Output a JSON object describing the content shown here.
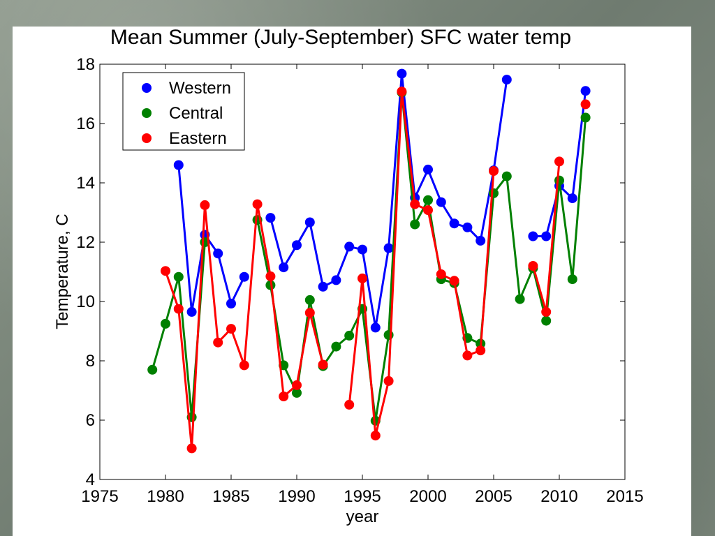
{
  "colors": {
    "Western": "#0000ff",
    "Central": "#008000",
    "Eastern": "#ff0000"
  },
  "chart_data": {
    "type": "line",
    "title": "Mean Summer (July-September) SFC water temp",
    "xlabel": "year",
    "ylabel": "Temperature, C",
    "xlim": [
      1975,
      2015
    ],
    "ylim": [
      4,
      18
    ],
    "xticks": [
      1975,
      1980,
      1985,
      1990,
      1995,
      2000,
      2005,
      2010,
      2015
    ],
    "yticks": [
      4,
      6,
      8,
      10,
      12,
      14,
      16,
      18
    ],
    "grid": false,
    "legend_position": "top-left",
    "series": [
      {
        "name": "Western",
        "points": [
          [
            1981,
            14.6
          ],
          [
            1982,
            9.65
          ],
          [
            1983,
            12.25
          ],
          [
            1984,
            11.62
          ],
          [
            1985,
            9.93
          ],
          [
            1986,
            10.83
          ],
          [
            null,
            null
          ],
          [
            1988,
            12.82
          ],
          [
            1989,
            11.15
          ],
          [
            1990,
            11.9
          ],
          [
            1991,
            12.67
          ],
          [
            1992,
            10.5
          ],
          [
            1993,
            10.72
          ],
          [
            1994,
            11.85
          ],
          [
            1995,
            11.75
          ],
          [
            1996,
            9.12
          ],
          [
            1997,
            11.8
          ],
          [
            1998,
            17.68
          ],
          [
            1999,
            13.5
          ],
          [
            2000,
            14.45
          ],
          [
            2001,
            13.35
          ],
          [
            2002,
            12.63
          ],
          [
            2003,
            12.5
          ],
          [
            2004,
            12.05
          ],
          [
            2005,
            14.42
          ],
          [
            2006,
            17.48
          ],
          [
            null,
            null
          ],
          [
            2008,
            12.2
          ],
          [
            2009,
            12.2
          ],
          [
            2010,
            13.9
          ],
          [
            2011,
            13.48
          ],
          [
            2012,
            17.1
          ]
        ]
      },
      {
        "name": "Central",
        "points": [
          [
            1979,
            7.7
          ],
          [
            1980,
            9.25
          ],
          [
            1981,
            10.83
          ],
          [
            1982,
            6.1
          ],
          [
            1983,
            12.0
          ],
          [
            null,
            null
          ],
          [
            1987,
            12.75
          ],
          [
            1988,
            10.55
          ],
          [
            1989,
            7.85
          ],
          [
            1990,
            6.92
          ],
          [
            1991,
            10.05
          ],
          [
            1992,
            7.82
          ],
          [
            1993,
            8.48
          ],
          [
            1994,
            8.85
          ],
          [
            1995,
            9.75
          ],
          [
            1996,
            5.98
          ],
          [
            1997,
            8.87
          ],
          [
            1998,
            17.05
          ],
          [
            1999,
            12.6
          ],
          [
            2000,
            13.42
          ],
          [
            2001,
            10.75
          ],
          [
            2002,
            10.62
          ],
          [
            2003,
            8.77
          ],
          [
            2004,
            8.58
          ],
          [
            2005,
            13.65
          ],
          [
            2006,
            14.22
          ],
          [
            2007,
            10.08
          ],
          [
            2008,
            11.12
          ],
          [
            2009,
            9.35
          ],
          [
            2010,
            14.08
          ],
          [
            2011,
            10.75
          ],
          [
            2012,
            16.2
          ]
        ]
      },
      {
        "name": "Eastern",
        "points": [
          [
            1980,
            11.03
          ],
          [
            1981,
            9.75
          ],
          [
            1982,
            5.05
          ],
          [
            1983,
            13.25
          ],
          [
            1984,
            8.62
          ],
          [
            1985,
            9.08
          ],
          [
            1986,
            7.85
          ],
          [
            1987,
            13.28
          ],
          [
            1988,
            10.85
          ],
          [
            1989,
            6.8
          ],
          [
            1990,
            7.18
          ],
          [
            1991,
            9.62
          ],
          [
            1992,
            7.87
          ],
          [
            null,
            null
          ],
          [
            1994,
            6.52
          ],
          [
            1995,
            10.78
          ],
          [
            1996,
            5.48
          ],
          [
            1997,
            7.32
          ],
          [
            1998,
            17.08
          ],
          [
            1999,
            13.28
          ],
          [
            2000,
            13.08
          ],
          [
            2001,
            10.92
          ],
          [
            2002,
            10.7
          ],
          [
            2003,
            8.18
          ],
          [
            2004,
            8.35
          ],
          [
            2005,
            14.4
          ],
          [
            null,
            null
          ],
          [
            2008,
            11.2
          ],
          [
            2009,
            9.65
          ],
          [
            2010,
            14.72
          ],
          [
            null,
            null
          ],
          [
            2012,
            16.65
          ]
        ]
      }
    ]
  }
}
